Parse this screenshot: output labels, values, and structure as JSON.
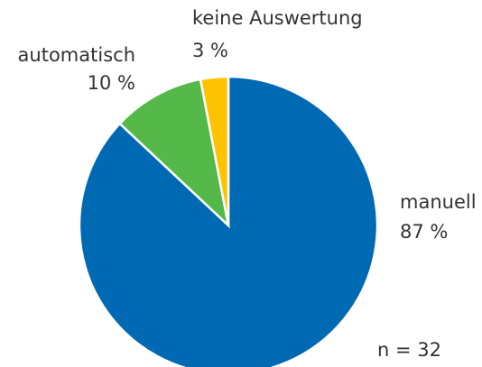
{
  "chart_data": {
    "type": "pie",
    "categories": [
      "manuell",
      "automatisch",
      "keine Auswertung"
    ],
    "values": [
      87,
      10,
      3
    ],
    "value_labels": [
      "87 %",
      "10 %",
      "3 %"
    ],
    "colors": [
      "#0069b4",
      "#54b948",
      "#fdc300"
    ],
    "annotation": "n = 32"
  }
}
